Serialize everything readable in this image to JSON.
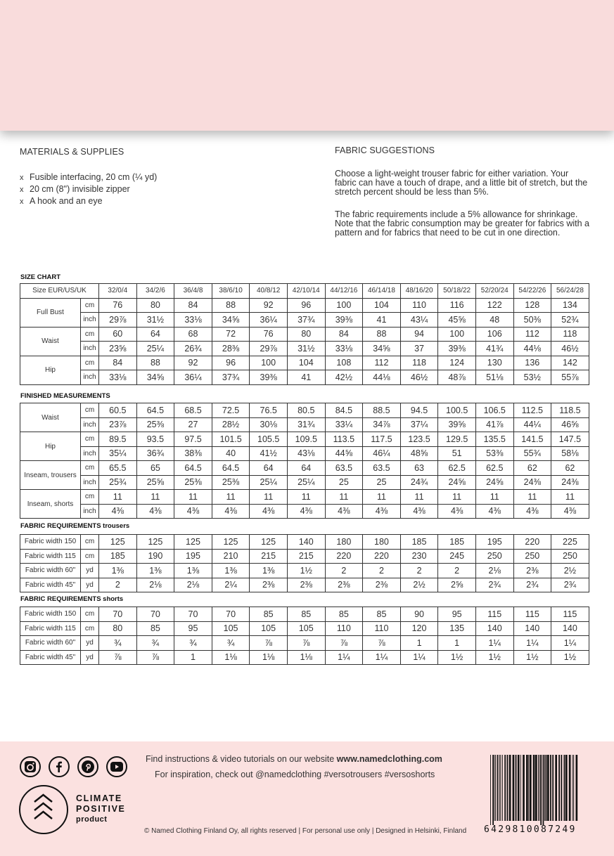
{
  "materials": {
    "title": "MATERIALS & SUPPLIES",
    "bullet": "x",
    "items": [
      "Fusible interfacing, 20 cm (¼ yd)",
      "20 cm (8\") invisible zipper",
      "A hook and an eye"
    ]
  },
  "fabric_suggestions": {
    "title": "FABRIC SUGGESTIONS",
    "paragraphs": [
      "Choose a light-weight trouser fabric for either variation. Your fabric can have a touch of drape, and a little bit of stretch, but the stretch percent should be less than 5%.",
      "The fabric requirements include a 5% allowance for shrinkage. Note that the fabric consumption may be greater for fabrics with a pattern and for fabrics that need to be cut in one direction."
    ]
  },
  "size_chart": {
    "title": "SIZE CHART",
    "header_label": "Size EUR/US/UK",
    "sizes": [
      "32/0/4",
      "34/2/6",
      "36/4/8",
      "38/6/10",
      "40/8/12",
      "42/10/14",
      "44/12/16",
      "46/14/18",
      "48/16/20",
      "50/18/22",
      "52/20/24",
      "54/22/26",
      "56/24/28"
    ],
    "groups": [
      {
        "label": "Full Bust",
        "rows": [
          {
            "unit": "cm",
            "values": [
              "76",
              "80",
              "84",
              "88",
              "92",
              "96",
              "100",
              "104",
              "110",
              "116",
              "122",
              "128",
              "134"
            ]
          },
          {
            "unit": "inch",
            "values": [
              "29⅞",
              "31½",
              "33⅛",
              "34⅝",
              "36¼",
              "37¾",
              "39⅜",
              "41",
              "43¼",
              "45⅝",
              "48",
              "50⅜",
              "52¾"
            ]
          }
        ]
      },
      {
        "label": "Waist",
        "rows": [
          {
            "unit": "cm",
            "values": [
              "60",
              "64",
              "68",
              "72",
              "76",
              "80",
              "84",
              "88",
              "94",
              "100",
              "106",
              "112",
              "118"
            ]
          },
          {
            "unit": "inch",
            "values": [
              "23⅝",
              "25¼",
              "26¾",
              "28⅜",
              "29⅞",
              "31½",
              "33⅛",
              "34⅝",
              "37",
              "39⅜",
              "41¾",
              "44⅛",
              "46½"
            ]
          }
        ]
      },
      {
        "label": "Hip",
        "rows": [
          {
            "unit": "cm",
            "values": [
              "84",
              "88",
              "92",
              "96",
              "100",
              "104",
              "108",
              "112",
              "118",
              "124",
              "130",
              "136",
              "142"
            ]
          },
          {
            "unit": "inch",
            "values": [
              "33⅛",
              "34⅝",
              "36¼",
              "37¾",
              "39⅜",
              "41",
              "42½",
              "44⅛",
              "46½",
              "48⅞",
              "51⅛",
              "53½",
              "55⅞"
            ]
          }
        ]
      }
    ]
  },
  "finished_measurements": {
    "title": "FINISHED MEASUREMENTS",
    "groups": [
      {
        "label": "Waist",
        "rows": [
          {
            "unit": "cm",
            "values": [
              "60.5",
              "64.5",
              "68.5",
              "72.5",
              "76.5",
              "80.5",
              "84.5",
              "88.5",
              "94.5",
              "100.5",
              "106.5",
              "112.5",
              "118.5"
            ]
          },
          {
            "unit": "inch",
            "values": [
              "23⅞",
              "25⅜",
              "27",
              "28½",
              "30⅛",
              "31¾",
              "33¼",
              "34⅞",
              "37¼",
              "39⅝",
              "41⅞",
              "44¼",
              "46⅝"
            ]
          }
        ]
      },
      {
        "label": "Hip",
        "rows": [
          {
            "unit": "cm",
            "values": [
              "89.5",
              "93.5",
              "97.5",
              "101.5",
              "105.5",
              "109.5",
              "113.5",
              "117.5",
              "123.5",
              "129.5",
              "135.5",
              "141.5",
              "147.5"
            ]
          },
          {
            "unit": "inch",
            "values": [
              "35¼",
              "36¾",
              "38⅜",
              "40",
              "41½",
              "43⅛",
              "44⅝",
              "46¼",
              "48⅝",
              "51",
              "53⅜",
              "55¾",
              "58⅛"
            ]
          }
        ]
      },
      {
        "label": "Inseam, trousers",
        "rows": [
          {
            "unit": "cm",
            "values": [
              "65.5",
              "65",
              "64.5",
              "64.5",
              "64",
              "64",
              "63.5",
              "63.5",
              "63",
              "62.5",
              "62.5",
              "62",
              "62"
            ]
          },
          {
            "unit": "inch",
            "values": [
              "25¾",
              "25⅝",
              "25⅜",
              "25⅜",
              "25¼",
              "25¼",
              "25",
              "25",
              "24¾",
              "24⅝",
              "24⅝",
              "24⅜",
              "24⅜"
            ]
          }
        ]
      },
      {
        "label": "Inseam, shorts",
        "rows": [
          {
            "unit": "cm",
            "values": [
              "11",
              "11",
              "11",
              "11",
              "11",
              "11",
              "11",
              "11",
              "11",
              "11",
              "11",
              "11",
              "11"
            ]
          },
          {
            "unit": "inch",
            "values": [
              "4⅜",
              "4⅜",
              "4⅜",
              "4⅜",
              "4⅜",
              "4⅜",
              "4⅜",
              "4⅜",
              "4⅜",
              "4⅜",
              "4⅜",
              "4⅜",
              "4⅜"
            ]
          }
        ]
      }
    ]
  },
  "fabric_trousers": {
    "title": "FABRIC REQUIREMENTS trousers",
    "rows": [
      {
        "label": "Fabric width 150",
        "unit": "cm",
        "values": [
          "125",
          "125",
          "125",
          "125",
          "125",
          "140",
          "180",
          "180",
          "185",
          "185",
          "195",
          "220",
          "225"
        ]
      },
      {
        "label": "Fabric width 115",
        "unit": "cm",
        "values": [
          "185",
          "190",
          "195",
          "210",
          "215",
          "215",
          "220",
          "220",
          "230",
          "245",
          "250",
          "250",
          "250"
        ]
      },
      {
        "label": "Fabric width 60\"",
        "unit": "yd",
        "values": [
          "1⅜",
          "1⅜",
          "1⅜",
          "1⅜",
          "1⅜",
          "1½",
          "2",
          "2",
          "2",
          "2",
          "2⅛",
          "2⅜",
          "2½"
        ]
      },
      {
        "label": "Fabric width 45\"",
        "unit": "yd",
        "values": [
          "2",
          "2⅛",
          "2⅛",
          "2¼",
          "2⅜",
          "2⅜",
          "2⅜",
          "2⅜",
          "2½",
          "2⅝",
          "2¾",
          "2¾",
          "2¾"
        ]
      }
    ]
  },
  "fabric_shorts": {
    "title": "FABRIC REQUIREMENTS shorts",
    "rows": [
      {
        "label": "Fabric width 150",
        "unit": "cm",
        "values": [
          "70",
          "70",
          "70",
          "70",
          "85",
          "85",
          "85",
          "85",
          "90",
          "95",
          "115",
          "115",
          "115"
        ]
      },
      {
        "label": "Fabric width 115",
        "unit": "cm",
        "values": [
          "80",
          "85",
          "95",
          "105",
          "105",
          "105",
          "110",
          "110",
          "120",
          "135",
          "140",
          "140",
          "140"
        ]
      },
      {
        "label": "Fabric width 60\"",
        "unit": "yd",
        "values": [
          "¾",
          "¾",
          "¾",
          "¾",
          "⅞",
          "⅞",
          "⅞",
          "⅞",
          "1",
          "1",
          "1¼",
          "1¼",
          "1¼"
        ]
      },
      {
        "label": "Fabric width 45\"",
        "unit": "yd",
        "values": [
          "⅞",
          "⅞",
          "1",
          "1⅛",
          "1⅛",
          "1⅛",
          "1¼",
          "1¼",
          "1¼",
          "1½",
          "1½",
          "1½",
          "1½"
        ]
      }
    ]
  },
  "footer": {
    "social_icons": [
      "instagram-icon",
      "facebook-icon",
      "pinterest-icon",
      "youtube-icon"
    ],
    "line1_prefix": "Find instructions & video tutorials on our website ",
    "line1_link": "www.namedclothing.com",
    "line2": "For inspiration, check out @namedclothing #versotrousers #versoshorts",
    "climate_badge": [
      "CLIMATE",
      "POSITIVE",
      "product"
    ],
    "copyright": "© Named Clothing Finland Oy, all rights reserved | For personal use only | Designed in Helsinki, Finland",
    "barcode_number": "6429810087249"
  },
  "colors": {
    "top_band": "#f9dcdc",
    "footer_band": "#fbe1e0",
    "table_border": "#333333"
  }
}
